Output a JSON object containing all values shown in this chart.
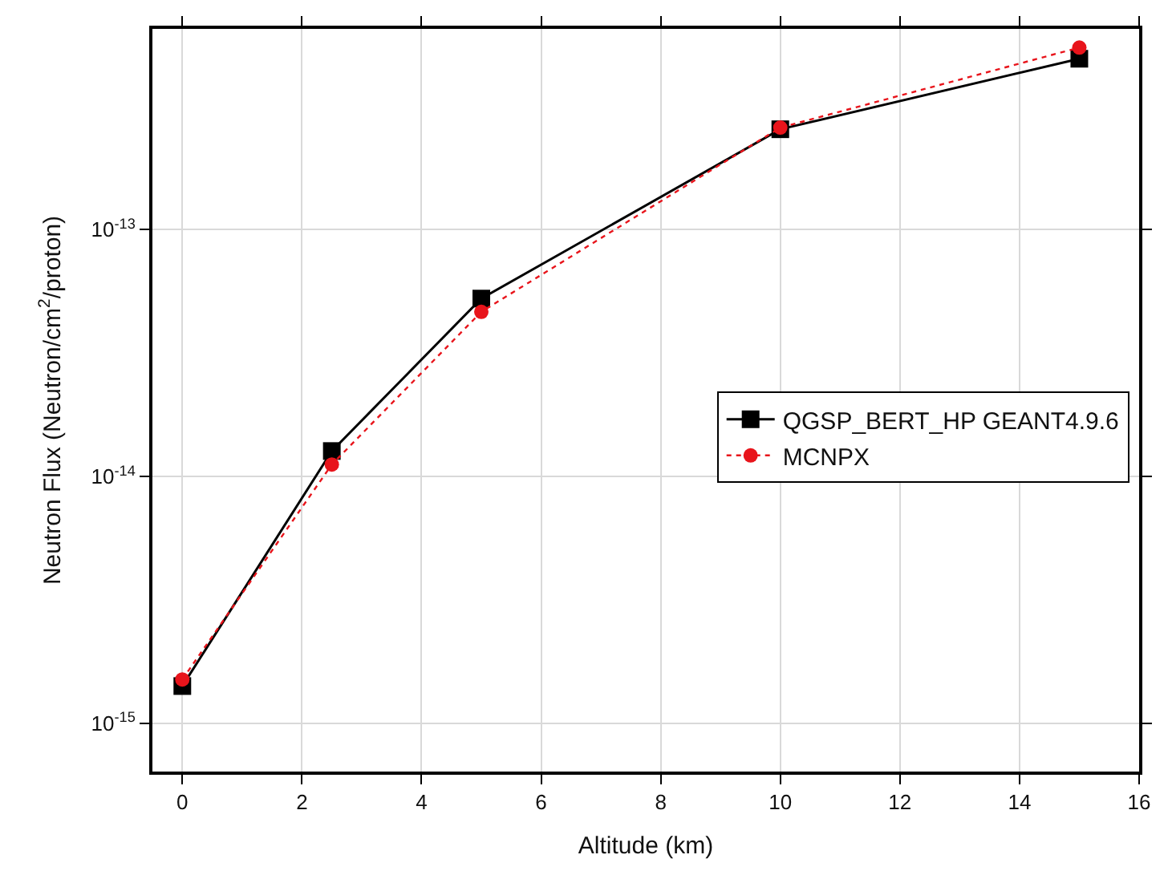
{
  "chart_data": {
    "type": "line",
    "xlabel": "Altitude (km)",
    "ylabel": "Neutron Flux (Neutron/cm$^{2}$/proton)",
    "x": [
      0,
      2.5,
      5,
      10,
      15
    ],
    "series": [
      {
        "name": "QGSP_BERT_HP GEANT4.9.6",
        "color": "#000000",
        "marker": "square",
        "line_style": "solid",
        "values": [
          1.42e-15,
          1.27e-14,
          5.26e-14,
          2.55e-13,
          4.92e-13
        ]
      },
      {
        "name": "MCNPX",
        "color": "#e8141b",
        "marker": "circle",
        "line_style": "dotted",
        "values": [
          1.51e-15,
          1.12e-14,
          4.65e-14,
          2.59e-13,
          5.46e-13
        ]
      }
    ],
    "log": "y",
    "xlim": [
      -0.5,
      16
    ],
    "ylim": [
      6.4e-16,
      6.5e-13
    ],
    "xticks": [
      0,
      2,
      4,
      6,
      8,
      10,
      12,
      14,
      16
    ],
    "yticks": [
      {
        "value": 1e-15,
        "label": "10$^{-15}$"
      },
      {
        "value": 1e-14,
        "label": "10$^{-14}$"
      },
      {
        "value": 1e-13,
        "label": "10$^{-13}$"
      }
    ],
    "grid": true,
    "legend": "right"
  }
}
